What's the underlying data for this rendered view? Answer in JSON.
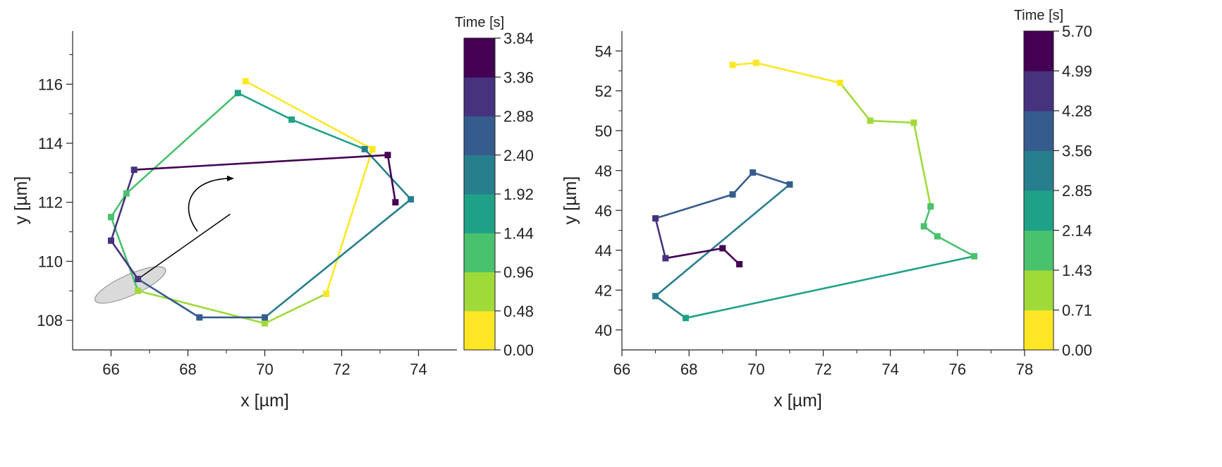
{
  "colors": {
    "viridis_stops": [
      "#fde725",
      "#a0da39",
      "#4ac16d",
      "#1fa187",
      "#277f8e",
      "#365c8d",
      "#46327e",
      "#440154"
    ],
    "axis": "#222222",
    "ellipse_fill": "#d3d3d3",
    "ellipse_stroke": "#888888"
  },
  "chart_data": [
    {
      "type": "line",
      "xlabel": "x [µm]",
      "ylabel": "y [µm]",
      "xlim": [
        65,
        75
      ],
      "ylim": [
        107,
        117.8
      ],
      "xticks": [
        66,
        68,
        70,
        72,
        74
      ],
      "yticks": [
        108,
        110,
        112,
        114,
        116
      ],
      "colorbar": {
        "title": "Time [s]",
        "min": 0,
        "max": 3.84,
        "ticks": [
          "0.00",
          "0.48",
          "0.96",
          "1.44",
          "1.92",
          "2.40",
          "2.88",
          "3.36",
          "3.84"
        ],
        "levels": 8
      },
      "series": [
        {
          "name": "trajectory",
          "points": [
            {
              "x": 69.5,
              "y": 116.1,
              "t": 0.0
            },
            {
              "x": 72.8,
              "y": 113.8,
              "t": 0.16
            },
            {
              "x": 71.6,
              "y": 108.9,
              "t": 0.4
            },
            {
              "x": 70.0,
              "y": 107.9,
              "t": 0.64
            },
            {
              "x": 66.7,
              "y": 109.0,
              "t": 0.9
            },
            {
              "x": 66.0,
              "y": 111.5,
              "t": 1.15
            },
            {
              "x": 66.4,
              "y": 112.3,
              "t": 1.3
            },
            {
              "x": 69.3,
              "y": 115.7,
              "t": 1.55
            },
            {
              "x": 70.7,
              "y": 114.8,
              "t": 1.75
            },
            {
              "x": 72.6,
              "y": 113.8,
              "t": 2.0
            },
            {
              "x": 73.8,
              "y": 112.1,
              "t": 2.2
            },
            {
              "x": 70.0,
              "y": 108.1,
              "t": 2.5
            },
            {
              "x": 68.3,
              "y": 108.1,
              "t": 2.75
            },
            {
              "x": 66.7,
              "y": 109.4,
              "t": 2.95
            },
            {
              "x": 66.0,
              "y": 110.7,
              "t": 3.1
            },
            {
              "x": 66.6,
              "y": 113.1,
              "t": 3.25
            },
            {
              "x": 73.2,
              "y": 113.6,
              "t": 3.5
            },
            {
              "x": 73.4,
              "y": 112.0,
              "t": 3.75
            }
          ]
        }
      ],
      "annotations": [
        {
          "type": "ellipse",
          "cx": 66.5,
          "cy": 109.2,
          "rx": 1.0,
          "ry": 0.35,
          "angle": -24
        },
        {
          "type": "line",
          "from": [
            66.7,
            109.4
          ],
          "to": [
            69.1,
            111.6
          ]
        },
        {
          "type": "curved-arrow",
          "description": "counterclockwise rotation"
        }
      ]
    },
    {
      "type": "line",
      "xlabel": "x [µm]",
      "ylabel": "y [µm]",
      "xlim": [
        66,
        78
      ],
      "ylim": [
        39,
        55
      ],
      "xticks": [
        66,
        68,
        70,
        72,
        74,
        76,
        78
      ],
      "yticks": [
        40,
        42,
        44,
        46,
        48,
        50,
        52,
        54
      ],
      "colorbar": {
        "title": "Time [s]",
        "min": 0,
        "max": 5.7,
        "ticks": [
          "0.00",
          "0.71",
          "1.43",
          "2.14",
          "2.85",
          "3.56",
          "4.28",
          "4.99",
          "5.70"
        ],
        "levels": 8
      },
      "series": [
        {
          "name": "trajectory",
          "points": [
            {
              "x": 69.3,
              "y": 53.3,
              "t": 0.0
            },
            {
              "x": 70.0,
              "y": 53.4,
              "t": 0.3
            },
            {
              "x": 72.5,
              "y": 52.4,
              "t": 0.6
            },
            {
              "x": 73.4,
              "y": 50.5,
              "t": 0.9
            },
            {
              "x": 74.7,
              "y": 50.4,
              "t": 1.2
            },
            {
              "x": 75.2,
              "y": 46.2,
              "t": 1.5
            },
            {
              "x": 75.0,
              "y": 45.2,
              "t": 1.7
            },
            {
              "x": 75.4,
              "y": 44.7,
              "t": 1.9
            },
            {
              "x": 76.5,
              "y": 43.7,
              "t": 2.05
            },
            {
              "x": 67.9,
              "y": 40.6,
              "t": 2.7
            },
            {
              "x": 67.0,
              "y": 41.7,
              "t": 3.0
            },
            {
              "x": 71.0,
              "y": 47.3,
              "t": 3.6
            },
            {
              "x": 69.9,
              "y": 47.9,
              "t": 3.8
            },
            {
              "x": 69.3,
              "y": 46.8,
              "t": 4.0
            },
            {
              "x": 67.0,
              "y": 45.6,
              "t": 4.4
            },
            {
              "x": 67.3,
              "y": 43.6,
              "t": 4.8
            },
            {
              "x": 69.0,
              "y": 44.1,
              "t": 5.2
            },
            {
              "x": 69.5,
              "y": 43.3,
              "t": 5.6
            }
          ]
        }
      ],
      "annotations": []
    }
  ]
}
